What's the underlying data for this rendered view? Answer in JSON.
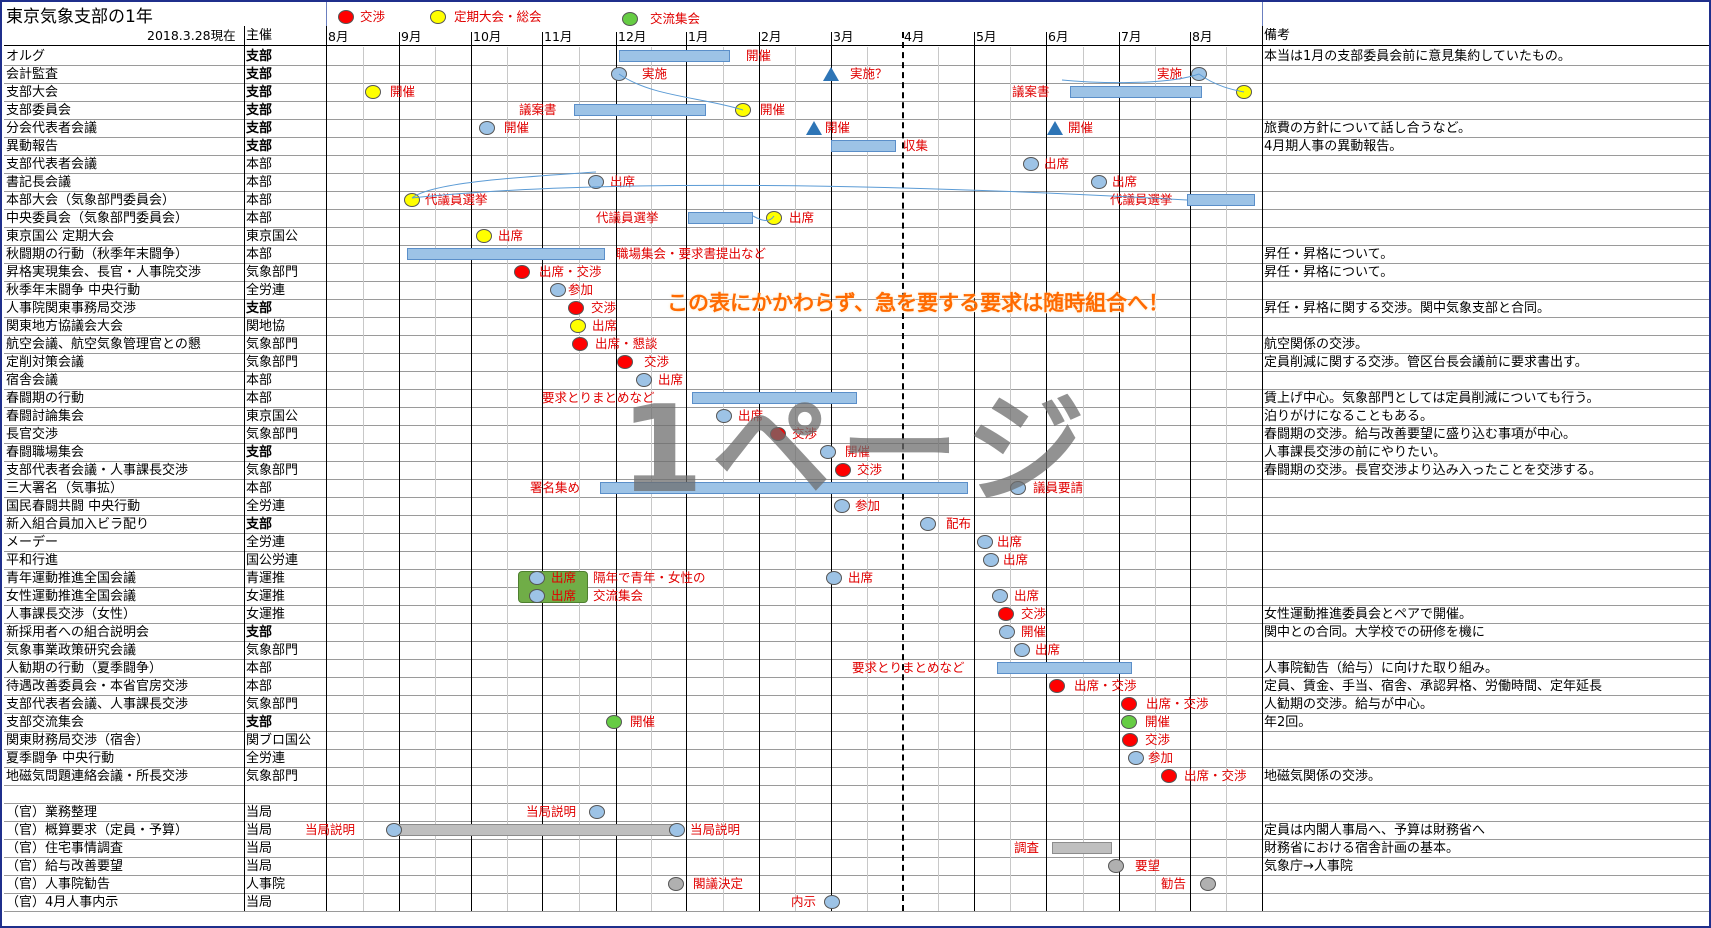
{
  "title": "東京気象支部の1年",
  "as_of": "2018.3.28現在",
  "header": {
    "organizer": "主催",
    "remarks": "備考"
  },
  "legend": [
    {
      "label": "交渉",
      "color": "#ff0000"
    },
    {
      "label": "定期大会・総会",
      "color": "#ffff00"
    },
    {
      "label": "交流集会",
      "color": "#66cc44"
    }
  ],
  "months": [
    "8月",
    "9月",
    "10月",
    "11月",
    "12月",
    "1月",
    "2月",
    "3月",
    "4月",
    "5月",
    "6月",
    "7月",
    "8月"
  ],
  "rows": [
    {
      "name": "オルグ",
      "org": "支部",
      "bold": true,
      "remark": "本当は1月の支部委員会前に意見集約していたもの。"
    },
    {
      "name": "会計監査",
      "org": "支部",
      "bold": true,
      "remark": ""
    },
    {
      "name": "支部大会",
      "org": "支部",
      "bold": true,
      "remark": ""
    },
    {
      "name": "支部委員会",
      "org": "支部",
      "bold": true,
      "remark": ""
    },
    {
      "name": "分会代表者会議",
      "org": "支部",
      "bold": true,
      "remark": "旅費の方針について話し合うなど。"
    },
    {
      "name": "異動報告",
      "org": "支部",
      "bold": true,
      "remark": "4月期人事の異動報告。"
    },
    {
      "name": "支部代表者会議",
      "org": "本部",
      "bold": false,
      "remark": ""
    },
    {
      "name": "書記長会議",
      "org": "本部",
      "bold": false,
      "remark": ""
    },
    {
      "name": "本部大会（気象部門委員会）",
      "org": "本部",
      "bold": false,
      "remark": ""
    },
    {
      "name": "中央委員会（気象部門委員会）",
      "org": "本部",
      "bold": false,
      "remark": ""
    },
    {
      "name": "東京国公 定期大会",
      "org": "東京国公",
      "bold": false,
      "remark": ""
    },
    {
      "name": "秋闘期の行動（秋季年末闘争）",
      "org": "本部",
      "bold": false,
      "remark": "昇任・昇格について。"
    },
    {
      "name": "昇格実現集会、長官・人事院交渉",
      "org": "気象部門",
      "bold": false,
      "remark": "昇任・昇格について。"
    },
    {
      "name": "秋季年末闘争 中央行動",
      "org": "全労連",
      "bold": false,
      "remark": ""
    },
    {
      "name": "人事院関東事務局交渉",
      "org": "支部",
      "bold": true,
      "remark": "昇任・昇格に関する交渉。関中気象支部と合同。"
    },
    {
      "name": "関東地方協議会大会",
      "org": "関地協",
      "bold": false,
      "remark": ""
    },
    {
      "name": "航空会議、航空気象管理官との懇",
      "org": "気象部門",
      "bold": false,
      "remark": "航空関係の交渉。"
    },
    {
      "name": "定削対策会議",
      "org": "気象部門",
      "bold": false,
      "remark": "定員削減に関する交渉。管区台長会議前に要求書出す。"
    },
    {
      "name": "宿舎会議",
      "org": "本部",
      "bold": false,
      "remark": ""
    },
    {
      "name": "春闘期の行動",
      "org": "本部",
      "bold": false,
      "remark": "賃上げ中心。気象部門としては定員削減についても行う。"
    },
    {
      "name": "春闘討論集会",
      "org": "東京国公",
      "bold": false,
      "remark": "泊りがけになることもある。"
    },
    {
      "name": "長官交渉",
      "org": "気象部門",
      "bold": false,
      "remark": "春闘期の交渉。給与改善要望に盛り込む事項が中心。"
    },
    {
      "name": "春闘職場集会",
      "org": "支部",
      "bold": true,
      "remark": "人事課長交渉の前にやりたい。"
    },
    {
      "name": "支部代表者会議・人事課長交渉",
      "org": "気象部門",
      "bold": false,
      "remark": "春闘期の交渉。長官交渉より込み入ったことを交渉する。"
    },
    {
      "name": "三大署名（気事拡）",
      "org": "本部",
      "bold": false,
      "remark": ""
    },
    {
      "name": "国民春闘共闘 中央行動",
      "org": "全労連",
      "bold": false,
      "remark": ""
    },
    {
      "name": "新入組合員加入ビラ配り",
      "org": "支部",
      "bold": true,
      "remark": ""
    },
    {
      "name": "メーデー",
      "org": "全労連",
      "bold": false,
      "remark": ""
    },
    {
      "name": "平和行進",
      "org": "国公労連",
      "bold": false,
      "remark": ""
    },
    {
      "name": "青年運動推進全国会議",
      "org": "青運推",
      "bold": false,
      "remark": ""
    },
    {
      "name": "女性運動推進全国会議",
      "org": "女運推",
      "bold": false,
      "remark": ""
    },
    {
      "name": "人事課長交渉（女性）",
      "org": "女運推",
      "bold": false,
      "remark": "女性運動推進委員会とペアで開催。"
    },
    {
      "name": "新採用者への組合説明会",
      "org": "支部",
      "bold": true,
      "remark": "関中との合同。大学校での研修を機に"
    },
    {
      "name": "気象事業政策研究会議",
      "org": "気象部門",
      "bold": false,
      "remark": ""
    },
    {
      "name": "人勧期の行動（夏季闘争）",
      "org": "本部",
      "bold": false,
      "remark": "人事院勧告（給与）に向けた取り組み。"
    },
    {
      "name": "待遇改善委員会・本省官房交渉",
      "org": "本部",
      "bold": false,
      "remark": "定員、賃金、手当、宿舎、承認昇格、労働時間、定年延長"
    },
    {
      "name": "支部代表者会議、人事課長交渉",
      "org": "気象部門",
      "bold": false,
      "remark": "人勧期の交渉。給与が中心。"
    },
    {
      "name": "支部交流集会",
      "org": "支部",
      "bold": true,
      "remark": "年2回。"
    },
    {
      "name": "関東財務局交渉（宿舎）",
      "org": "関ブロ国公",
      "bold": false,
      "remark": ""
    },
    {
      "name": "夏季闘争 中央行動",
      "org": "全労連",
      "bold": false,
      "remark": ""
    },
    {
      "name": "地磁気問題連絡会議・所長交渉",
      "org": "気象部門",
      "bold": false,
      "remark": "地磁気関係の交渉。"
    },
    {
      "name": "",
      "org": "",
      "bold": false,
      "remark": ""
    },
    {
      "name": "（官）業務整理",
      "org": "当局",
      "bold": false,
      "remark": ""
    },
    {
      "name": "（官）概算要求（定員・予算）",
      "org": "当局",
      "bold": false,
      "remark": "定員は内閣人事局へ、予算は財務省へ"
    },
    {
      "name": "（官）住宅事情調査",
      "org": "当局",
      "bold": false,
      "remark": "財務省における宿舎計画の基本。"
    },
    {
      "name": "（官）給与改善要望",
      "org": "当局",
      "bold": false,
      "remark": "気象庁→人事院"
    },
    {
      "name": "（官）人事院勧告",
      "org": "人事院",
      "bold": false,
      "remark": ""
    },
    {
      "name": "（官）4月人事内示",
      "org": "当局",
      "bold": false,
      "remark": ""
    }
  ],
  "annotations": [
    "開催",
    "実施",
    "実施？",
    "実施",
    "開催",
    "議案書",
    "議案書",
    "開催",
    "開催",
    "開催",
    "開催",
    "収集",
    "出席",
    "出席",
    "出席",
    "代議員選挙",
    "代議員選挙",
    "出席",
    "出席",
    "職場集会・要求書提出など",
    "出席・交渉",
    "参加",
    "交渉",
    "出席",
    "出席・懇談",
    "交渉",
    "出席",
    "要求とりまとめなど",
    "出席",
    "交渉",
    "開催",
    "交渉",
    "署名集め",
    "議員要請",
    "参加",
    "配布",
    "出席",
    "出席",
    "出席",
    "隔年で青年・女性の",
    "出席",
    "交流集会",
    "出席",
    "交渉",
    "開催",
    "出席",
    "要求とりまとめなど",
    "出席・交渉",
    "出席・交渉",
    "開催",
    "交渉",
    "参加",
    "出席・交渉",
    "当局説明",
    "当局説明",
    "当局説明",
    "調査",
    "要望",
    "閣議決定",
    "勧告",
    "内示"
  ],
  "notice": "この表にかかわらず、急を要する要求は随時組合へ！",
  "watermark": "1ページ"
}
